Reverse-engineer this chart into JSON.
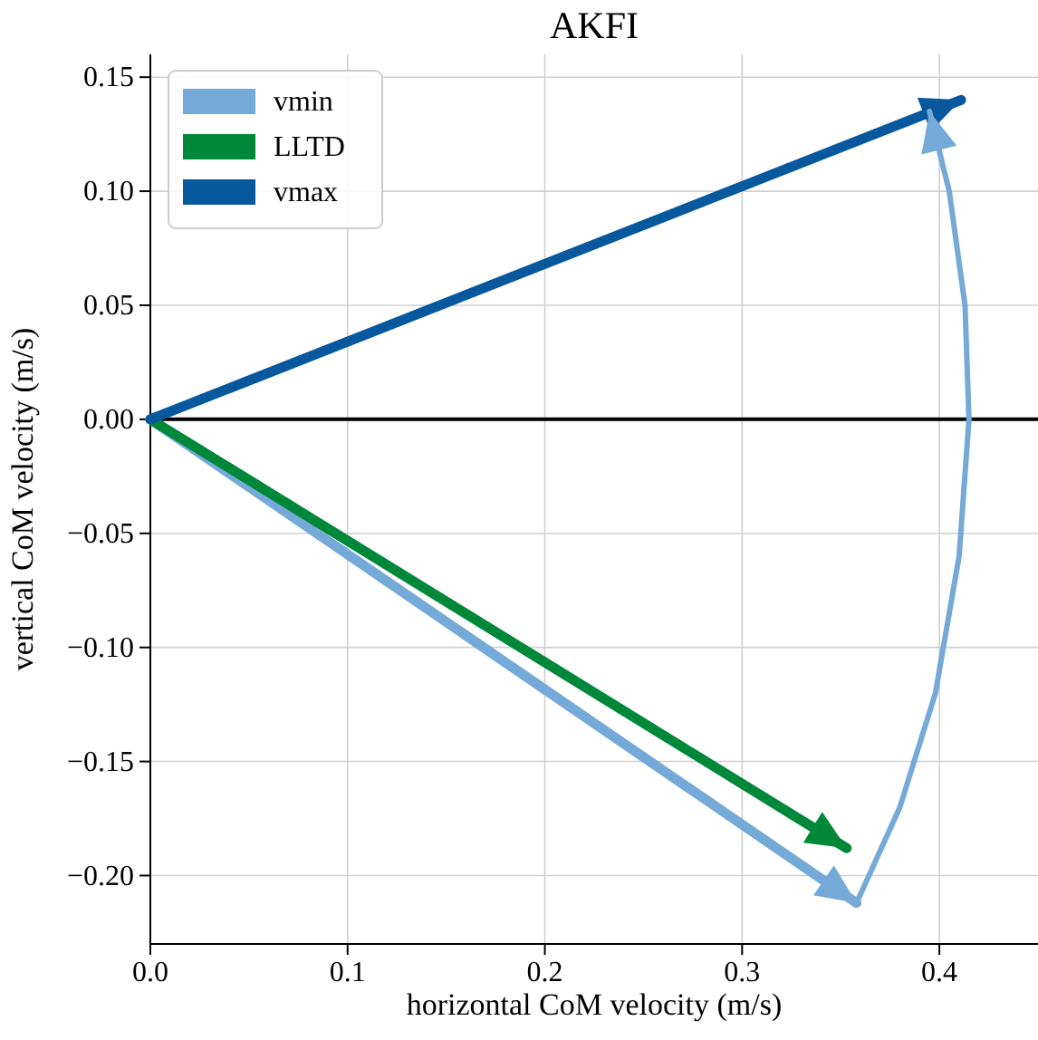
{
  "chart_data": {
    "type": "line",
    "title": "AKFI",
    "xlabel": "horizontal CoM velocity (m/s)",
    "ylabel": "vertical CoM velocity (m/s)",
    "xlim": [
      0,
      0.45
    ],
    "ylim": [
      -0.23,
      0.16
    ],
    "xticks": [
      {
        "value": 0,
        "label": "0.0"
      },
      {
        "value": 0.1,
        "label": "0.1"
      },
      {
        "value": 0.2,
        "label": "0.2"
      },
      {
        "value": 0.3,
        "label": "0.3"
      },
      {
        "value": 0.4,
        "label": "0.4"
      }
    ],
    "yticks": [
      {
        "value": -0.2,
        "label": "−0.20"
      },
      {
        "value": -0.15,
        "label": "−0.15"
      },
      {
        "value": -0.1,
        "label": "−0.10"
      },
      {
        "value": -0.05,
        "label": "−0.05"
      },
      {
        "value": 0,
        "label": "0.00"
      },
      {
        "value": 0.05,
        "label": "0.05"
      },
      {
        "value": 0.1,
        "label": "0.10"
      },
      {
        "value": 0.15,
        "label": "0.15"
      }
    ],
    "grid": true,
    "legend": "top left",
    "ref_lines": [
      {
        "axis": "y",
        "value": 0,
        "color": "#000000"
      }
    ],
    "series": [
      {
        "name": "vmin",
        "color": "#74a9d8",
        "x": [
          0,
          0.358
        ],
        "values": [
          0,
          -0.212
        ]
      },
      {
        "name": "LLTD",
        "color": "#00883a",
        "x": [
          0,
          0.353
        ],
        "values": [
          0,
          -0.188
        ]
      },
      {
        "name": "vmax",
        "color": "#08589e",
        "x": [
          0,
          0.411
        ],
        "values": [
          0,
          0.14
        ]
      },
      {
        "color": "#74a9d8",
        "x": [
          0.358,
          0.38,
          0.398,
          0.41,
          0.415,
          0.413,
          0.405,
          0.395
        ],
        "values": [
          -0.212,
          -0.17,
          -0.12,
          -0.06,
          0,
          0.05,
          0.1,
          0.135
        ]
      }
    ]
  }
}
